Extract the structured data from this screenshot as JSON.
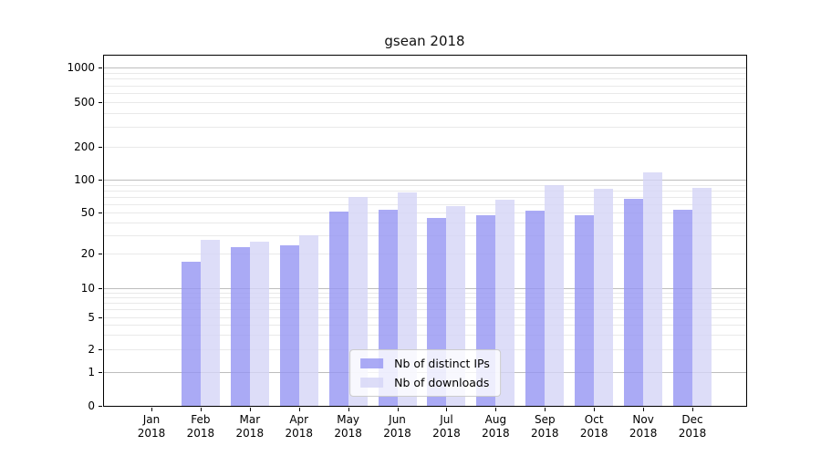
{
  "chart_data": {
    "type": "bar",
    "title": "gsean 2018",
    "categories": [
      "Jan",
      "Feb",
      "Mar",
      "Apr",
      "May",
      "Jun",
      "Jul",
      "Aug",
      "Sep",
      "Oct",
      "Nov",
      "Dec"
    ],
    "category_year": "2018",
    "series": [
      {
        "name": "Nb of distinct IPs",
        "color": "#9595f2",
        "values": [
          0,
          17,
          23,
          24,
          51,
          53,
          44,
          47,
          52,
          47,
          67,
          53
        ]
      },
      {
        "name": "Nb of downloads",
        "color": "#d4d4f6",
        "values": [
          0,
          27,
          26,
          30,
          70,
          76,
          58,
          66,
          90,
          83,
          117,
          84
        ]
      }
    ],
    "bar_alpha": 0.8,
    "yscale": "symlog",
    "y_ticks": [
      0,
      1,
      2,
      5,
      10,
      20,
      50,
      100,
      200,
      500,
      1000
    ],
    "ylim": [
      0,
      1300
    ],
    "xlabel": "",
    "ylabel": "",
    "grid": true,
    "legend_position": "lower center",
    "colors": {
      "major_grid": "#bdbdbd",
      "minor_grid": "#e9e9e9",
      "spine": "#000000"
    }
  }
}
